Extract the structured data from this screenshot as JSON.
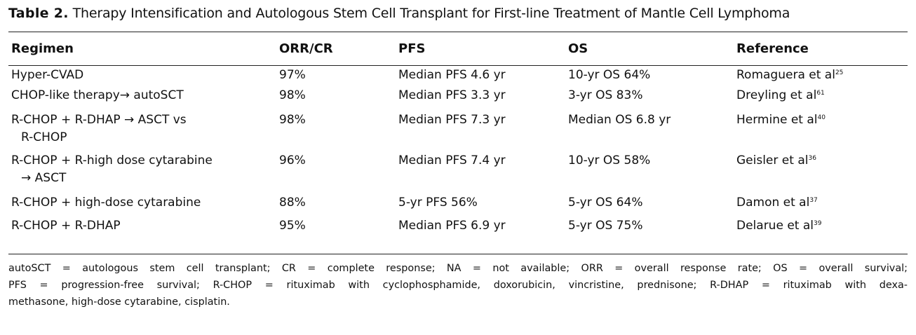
{
  "table": {
    "label": "Table 2.",
    "caption": "Therapy Intensification and Autologous Stem Cell Transplant for First-line Treatment of Mantle Cell Lymphoma",
    "headers": [
      "Regimen",
      "ORR/CR",
      "PFS",
      "OS",
      "Reference"
    ],
    "rows": [
      {
        "regimen": [
          "Hyper-CVAD"
        ],
        "orr_cr": "97%",
        "pfs": "Median PFS 4.6 yr",
        "os": "10-yr OS 64%",
        "reference": "Romaguera et al",
        "ref_num": "25"
      },
      {
        "regimen": [
          "CHOP-like therapy→ autoSCT"
        ],
        "orr_cr": "98%",
        "pfs": "Median PFS 3.3 yr",
        "os": "3-yr OS 83%",
        "reference": "Dreyling et al",
        "ref_num": "61"
      },
      {
        "regimen": [
          "R-CHOP + R-DHAP → ASCT vs",
          "R-CHOP"
        ],
        "orr_cr": "98%",
        "pfs": "Median PFS 7.3 yr",
        "os": "Median OS 6.8 yr",
        "reference": "Hermine et al",
        "ref_num": "40"
      },
      {
        "regimen": [
          "R-CHOP + R-high dose cytarabine",
          "→ ASCT"
        ],
        "orr_cr": "96%",
        "pfs": "Median PFS 7.4 yr",
        "os": "10-yr OS 58%",
        "reference": "Geisler et al",
        "ref_num": "36"
      },
      {
        "regimen": [
          "R-CHOP + high-dose cytarabine"
        ],
        "orr_cr": "88%",
        "pfs": "5-yr PFS 56%",
        "os": "5-yr OS 64%",
        "reference": "Damon et al",
        "ref_num": "37"
      },
      {
        "regimen": [
          "R-CHOP + R-DHAP"
        ],
        "orr_cr": "95%",
        "pfs": "Median PFS 6.9 yr",
        "os": "5-yr OS 75%",
        "reference": "Delarue et al",
        "ref_num": "39"
      }
    ],
    "footnote_lines": [
      "autoSCT = autologous stem cell transplant; CR = complete response; NA = not available; ORR = overall response rate; OS = overall survival;",
      "PFS = progression-free survival; R-CHOP = rituximab with cyclophosphamide, doxorubicin, vincristine, prednisone; R-DHAP = rituximab with dexa-",
      "methasone, high-dose cytarabine, cisplatin."
    ]
  }
}
